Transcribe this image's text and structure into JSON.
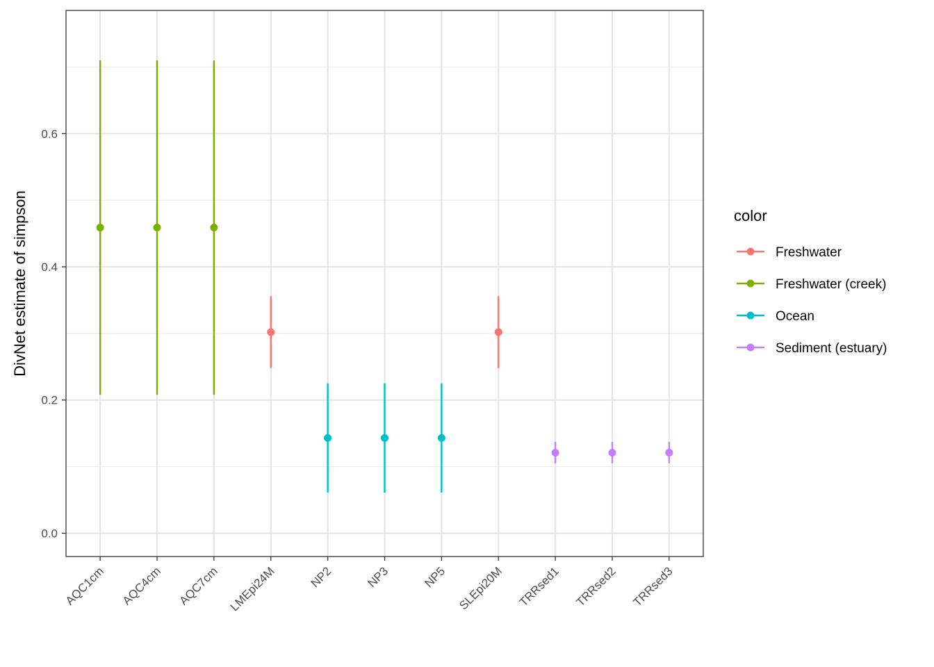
{
  "chart_data": {
    "type": "scatter",
    "title": "",
    "xlabel": "",
    "ylabel": "DivNet estimate of simpson",
    "ylim": [
      -0.035,
      0.785
    ],
    "yticks": [
      0.0,
      0.2,
      0.4,
      0.6
    ],
    "ytick_labels": [
      "0.0",
      "0.2",
      "0.4",
      "0.6"
    ],
    "grid": true,
    "legend_placement": "right",
    "legend_title": "color",
    "categories": [
      "AQC1cm",
      "AQC4cm",
      "AQC7cm",
      "LMEpi24M",
      "NP2",
      "NP3",
      "NP5",
      "SLEpi20M",
      "TRRsed1",
      "TRRsed2",
      "TRRsed3"
    ],
    "series": [
      {
        "name": "Freshwater",
        "color": "#F8766D",
        "points": [
          {
            "category": "LMEpi24M",
            "estimate": 0.302,
            "lower": 0.248,
            "upper": 0.356
          },
          {
            "category": "SLEpi20M",
            "estimate": 0.302,
            "lower": 0.248,
            "upper": 0.356
          }
        ]
      },
      {
        "name": "Freshwater (creek)",
        "color": "#7CAE00",
        "points": [
          {
            "category": "AQC1cm",
            "estimate": 0.459,
            "lower": 0.208,
            "upper": 0.71
          },
          {
            "category": "AQC4cm",
            "estimate": 0.459,
            "lower": 0.208,
            "upper": 0.71
          },
          {
            "category": "AQC7cm",
            "estimate": 0.459,
            "lower": 0.208,
            "upper": 0.71
          }
        ]
      },
      {
        "name": "Ocean",
        "color": "#00BFC4",
        "points": [
          {
            "category": "NP2",
            "estimate": 0.143,
            "lower": 0.061,
            "upper": 0.225
          },
          {
            "category": "NP3",
            "estimate": 0.143,
            "lower": 0.061,
            "upper": 0.225
          },
          {
            "category": "NP5",
            "estimate": 0.143,
            "lower": 0.061,
            "upper": 0.225
          }
        ]
      },
      {
        "name": "Sediment (estuary)",
        "color": "#C77CFF",
        "points": [
          {
            "category": "TRRsed1",
            "estimate": 0.121,
            "lower": 0.105,
            "upper": 0.137
          },
          {
            "category": "TRRsed2",
            "estimate": 0.121,
            "lower": 0.105,
            "upper": 0.137
          },
          {
            "category": "TRRsed3",
            "estimate": 0.121,
            "lower": 0.105,
            "upper": 0.137
          }
        ]
      }
    ]
  }
}
